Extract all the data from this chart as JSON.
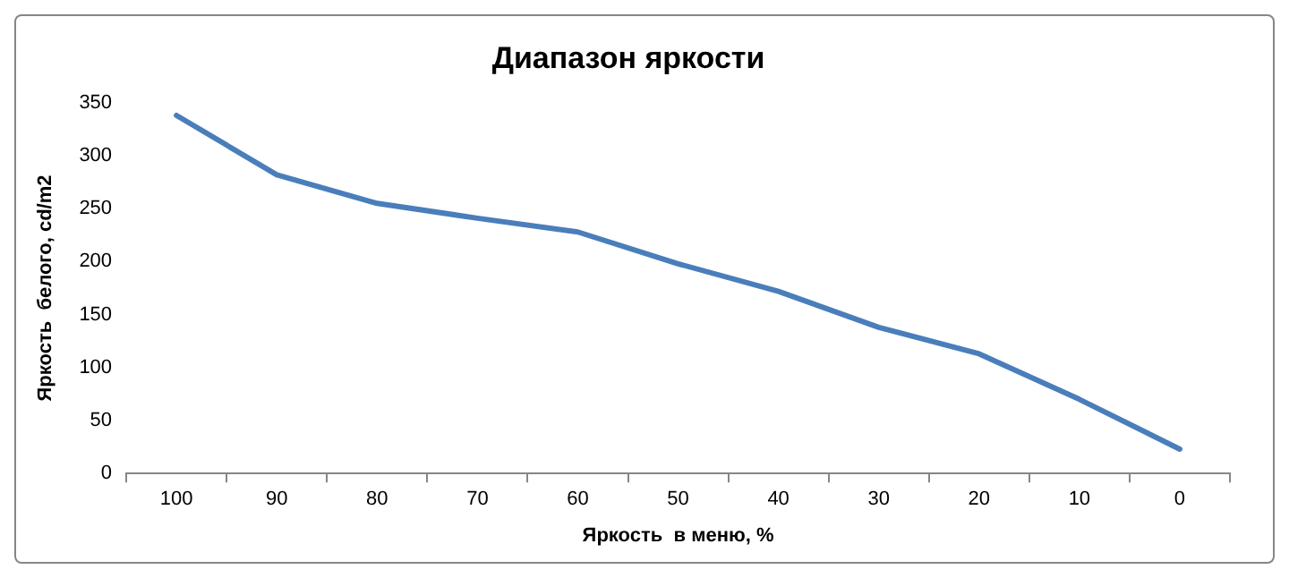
{
  "chart_data": {
    "type": "line",
    "title": "Диапазон яркости",
    "xlabel": "Яркость  в меню, %",
    "ylabel": "Яркость  белого, cd/m2",
    "categories": [
      "100",
      "90",
      "80",
      "70",
      "60",
      "50",
      "40",
      "30",
      "20",
      "10",
      "0"
    ],
    "series": [
      {
        "color": "#4a7ebb",
        "values": [
          338,
          282,
          255,
          241,
          228,
          198,
          172,
          138,
          113,
          70,
          23
        ]
      }
    ],
    "ylim": [
      0,
      350
    ],
    "yticks": [
      0,
      50,
      100,
      150,
      200,
      250,
      300,
      350
    ],
    "grid": false,
    "legend": false,
    "marker": "none",
    "line_style": "solid"
  }
}
